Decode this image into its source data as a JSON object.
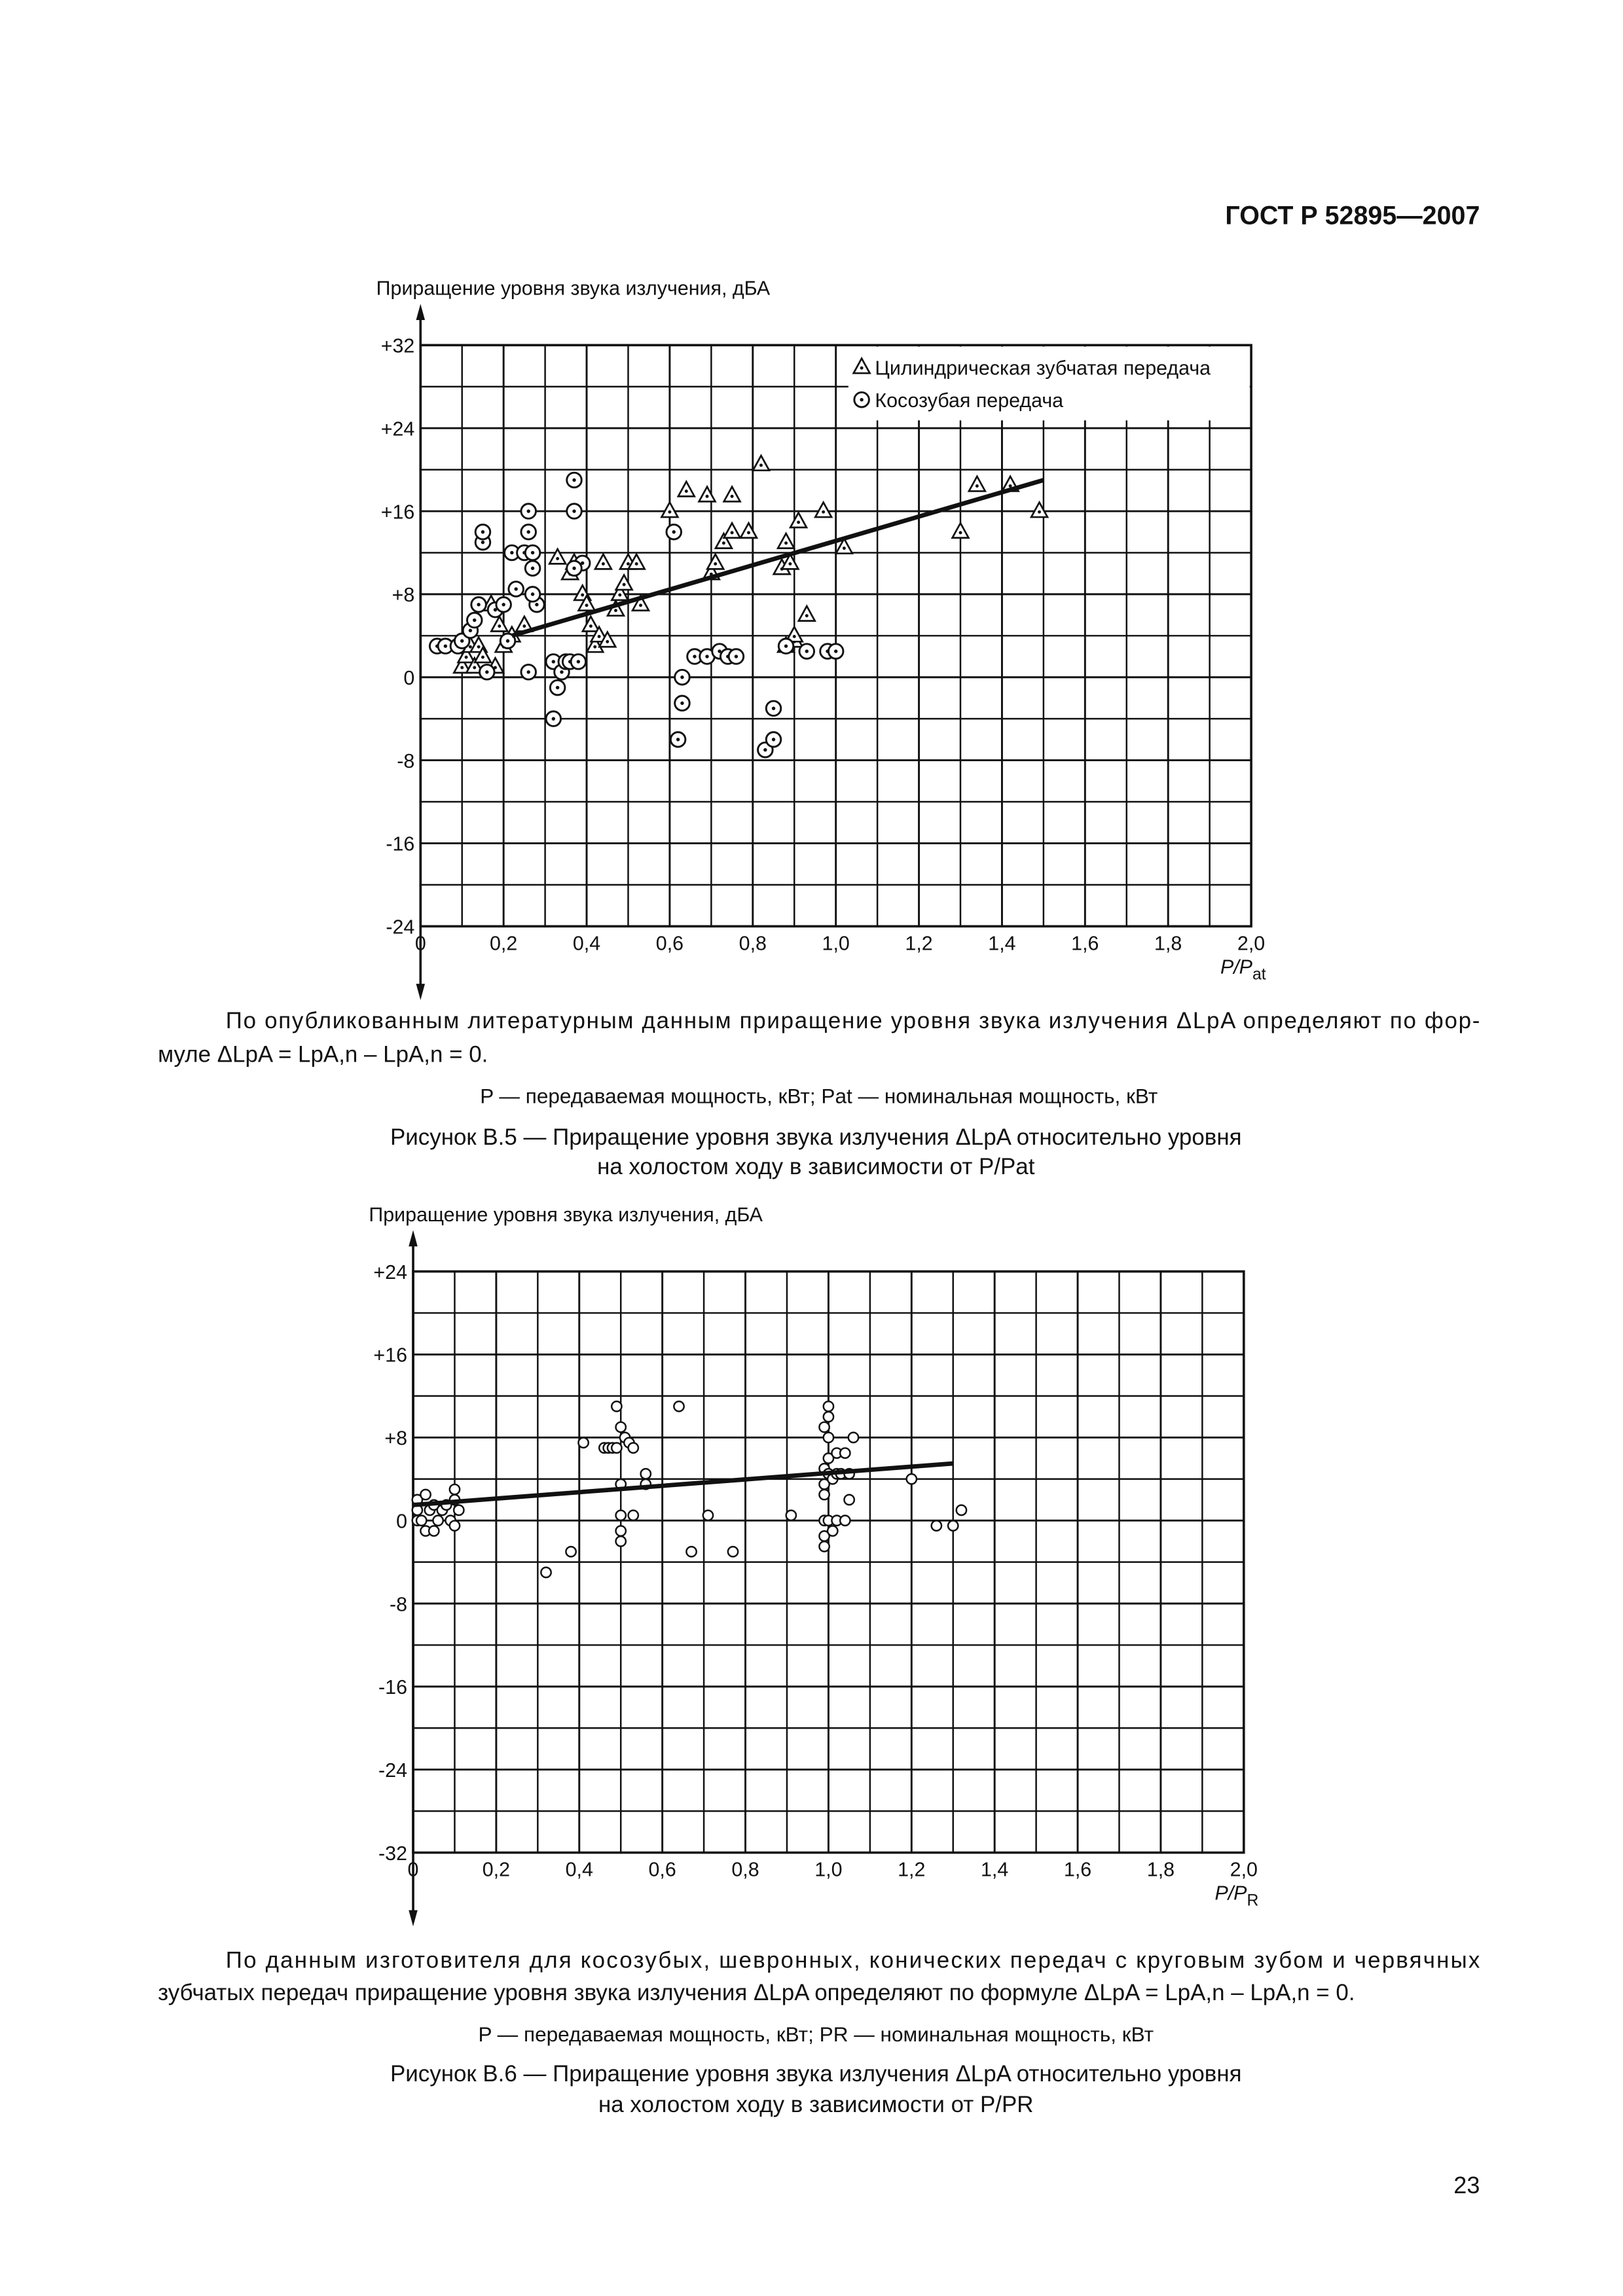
{
  "header": {
    "title": "ГОСТ Р 52895—2007"
  },
  "chart_data": [
    {
      "type": "scatter",
      "y_label": "Приращение уровня звука излучения, дБА",
      "x_label": "P/P",
      "x_label_sub": "at",
      "xlim": [
        0,
        2.0
      ],
      "ylim": [
        -24,
        32
      ],
      "xticks": [
        0,
        {
          "value": 0.2,
          "label": "0,2"
        },
        {
          "value": 0.4,
          "label": "0,4"
        },
        {
          "value": 0.6,
          "label": "0,6"
        },
        {
          "value": 0.8,
          "label": "0,8"
        },
        {
          "value": 1.0,
          "label": "1,0"
        },
        {
          "value": 1.2,
          "label": "1,2"
        },
        {
          "value": 1.4,
          "label": "1,4"
        },
        {
          "value": 1.6,
          "label": "1,6"
        },
        {
          "value": 1.8,
          "label": "1,8"
        },
        {
          "value": 2.0,
          "label": "2,0"
        }
      ],
      "yticks": [
        -24,
        -16,
        -8,
        0,
        {
          "value": 8,
          "label": "+8"
        },
        {
          "value": 16,
          "label": "+16"
        },
        {
          "value": 24,
          "label": "+24"
        },
        {
          "value": 32,
          "label": "+32"
        }
      ],
      "grid": true,
      "minor_grid": true,
      "legend": "upper right",
      "series": [
        {
          "name": "Цилиндрическая зубчатая передача",
          "marker": "triangle",
          "color": "#111111",
          "x": [
            0.1,
            0.11,
            0.12,
            0.13,
            0.14,
            0.15,
            0.17,
            0.18,
            0.19,
            0.2,
            0.22,
            0.25,
            0.33,
            0.36,
            0.37,
            0.39,
            0.4,
            0.41,
            0.42,
            0.43,
            0.44,
            0.45,
            0.47,
            0.48,
            0.49,
            0.5,
            0.52,
            0.53,
            0.6,
            0.64,
            0.69,
            0.7,
            0.71,
            0.73,
            0.75,
            0.75,
            0.79,
            0.82,
            0.87,
            0.88,
            0.89,
            0.9,
            0.91,
            0.93,
            0.97,
            1.02,
            1.3,
            1.34,
            1.42,
            1.49,
            0.88,
            0.9
          ],
          "values": [
            1,
            2,
            3,
            1,
            3,
            2,
            7,
            1,
            5,
            3,
            4,
            5,
            11.5,
            10,
            11,
            8,
            7,
            5,
            3,
            4,
            11,
            3.5,
            6.5,
            8,
            9,
            11,
            11,
            7,
            16,
            18,
            17.5,
            10,
            11,
            13,
            14,
            17.5,
            14,
            20.5,
            10.5,
            13,
            11,
            3.5,
            15,
            6,
            16,
            12.5,
            14,
            18.5,
            18.5,
            16,
            3,
            4
          ]
        },
        {
          "name": "Косозубая передача",
          "marker": "dotted-circle",
          "color": "#111111",
          "x": [
            0.04,
            0.06,
            0.09,
            0.1,
            0.12,
            0.13,
            0.14,
            0.15,
            0.15,
            0.16,
            0.18,
            0.2,
            0.21,
            0.22,
            0.23,
            0.25,
            0.26,
            0.26,
            0.27,
            0.27,
            0.28,
            0.27,
            0.26,
            0.37,
            0.37,
            0.39,
            0.37,
            0.32,
            0.32,
            0.33,
            0.34,
            0.35,
            0.36,
            0.38,
            0.61,
            0.62,
            0.63,
            0.63,
            0.66,
            0.69,
            0.72,
            0.74,
            0.76,
            0.83,
            0.85,
            0.85,
            0.88,
            0.93,
            0.98,
            1.0
          ],
          "values": [
            3,
            3,
            3,
            3.5,
            4.5,
            5.5,
            7,
            13,
            14,
            0.5,
            6.5,
            7,
            3.5,
            12,
            8.5,
            12,
            16,
            14,
            12,
            10.5,
            7,
            8,
            0.5,
            19,
            16,
            11,
            10.5,
            -4,
            1.5,
            -1,
            0.5,
            1.5,
            1.5,
            1.5,
            14,
            -6,
            0,
            -2.5,
            2,
            2,
            2.5,
            2,
            2,
            -7,
            -6,
            -3,
            3,
            2.5,
            2.5,
            2.5
          ]
        }
      ],
      "trend": {
        "x": [
          0.22,
          1.5
        ],
        "y": [
          4,
          19
        ]
      }
    },
    {
      "type": "scatter",
      "y_label": "Приращение уровня звука излучения, дБА",
      "x_label": "P/P",
      "x_label_sub": "R",
      "xlim": [
        0,
        2.0
      ],
      "ylim": [
        -32,
        24
      ],
      "xticks": [
        0,
        {
          "value": 0.2,
          "label": "0,2"
        },
        {
          "value": 0.4,
          "label": "0,4"
        },
        {
          "value": 0.6,
          "label": "0,6"
        },
        {
          "value": 0.8,
          "label": "0,8"
        },
        {
          "value": 1.0,
          "label": "1,0"
        },
        {
          "value": 1.2,
          "label": "1,2"
        },
        {
          "value": 1.4,
          "label": "1,4"
        },
        {
          "value": 1.6,
          "label": "1,6"
        },
        {
          "value": 1.8,
          "label": "1,8"
        },
        {
          "value": 2.0,
          "label": "2,0"
        }
      ],
      "yticks": [
        -32,
        -24,
        -16,
        -8,
        0,
        {
          "value": 8,
          "label": "+8"
        },
        {
          "value": 16,
          "label": "+16"
        },
        {
          "value": 24,
          "label": "+24"
        }
      ],
      "grid": true,
      "minor_grid": true,
      "series": [
        {
          "marker": "circle",
          "color": "#111111",
          "x": [
            0.01,
            0.01,
            0.01,
            0.02,
            0.03,
            0.03,
            0.04,
            0.05,
            0.05,
            0.06,
            0.07,
            0.08,
            0.09,
            0.1,
            0.1,
            0.1,
            0.11,
            0.32,
            0.38,
            0.41,
            0.46,
            0.47,
            0.48,
            0.49,
            0.49,
            0.5,
            0.5,
            0.5,
            0.5,
            0.5,
            0.51,
            0.52,
            0.53,
            0.53,
            0.56,
            0.56,
            0.64,
            0.67,
            0.71,
            0.77,
            0.91,
            0.99,
            0.99,
            0.99,
            0.99,
            0.99,
            0.99,
            0.99,
            1.0,
            1.0,
            1.0,
            1.0,
            1.0,
            1.0,
            1.01,
            1.01,
            1.02,
            1.02,
            1.02,
            1.03,
            1.04,
            1.04,
            1.05,
            1.05,
            1.06,
            1.2,
            1.26,
            1.3,
            1.32
          ],
          "values": [
            1,
            2,
            0,
            0,
            2.5,
            -1,
            1,
            -1,
            1.5,
            0,
            1,
            1.5,
            0,
            3,
            2,
            -0.5,
            1,
            -5,
            -3,
            7.5,
            7,
            7,
            7,
            7,
            11,
            9,
            3.5,
            0.5,
            -1,
            -2,
            8,
            7.5,
            7,
            0.5,
            4.5,
            3.5,
            11,
            -3,
            0.5,
            -3,
            0.5,
            9,
            5,
            3.5,
            2.5,
            0,
            -1.5,
            -2.5,
            11,
            10,
            8,
            6,
            4.5,
            0,
            4,
            -1,
            6.5,
            4.5,
            0,
            4.5,
            6.5,
            0,
            4.5,
            2,
            8,
            4,
            -0.5,
            -0.5,
            1
          ]
        }
      ],
      "trend": {
        "x": [
          0,
          1.3
        ],
        "y": [
          1.5,
          5.5
        ]
      }
    }
  ],
  "figures": [
    {
      "paragraph": [
        "По опубликованным литературным данным приращение уровня звука излучения ΔLpA определяют по фор-",
        "муле ΔLpA = LpA,n – LpA,n = 0."
      ],
      "notation": "P — передаваемая мощность, кВт; Pat — номинальная мощность, кВт",
      "caption": [
        "Рисунок В.5 — Приращение уровня звука излучения ΔLpA относительно уровня",
        "на холостом ходу в зависимости от P/Pat"
      ]
    },
    {
      "paragraph": [
        "По данным изготовителя для косозубых, шевронных, конических передач с круговым зубом и червячных",
        "зубчатых передач приращение уровня звука излучения ΔLpA определяют по формуле ΔLpA = LpA,n – LpA,n = 0."
      ],
      "notation": "P — передаваемая мощность, кВт; PR — номинальная мощность, кВт",
      "caption": [
        "Рисунок В.6 — Приращение уровня звука излучения ΔLpA относительно уровня",
        "на холостом ходу в зависимости от P/PR"
      ]
    }
  ],
  "page_number": "23"
}
